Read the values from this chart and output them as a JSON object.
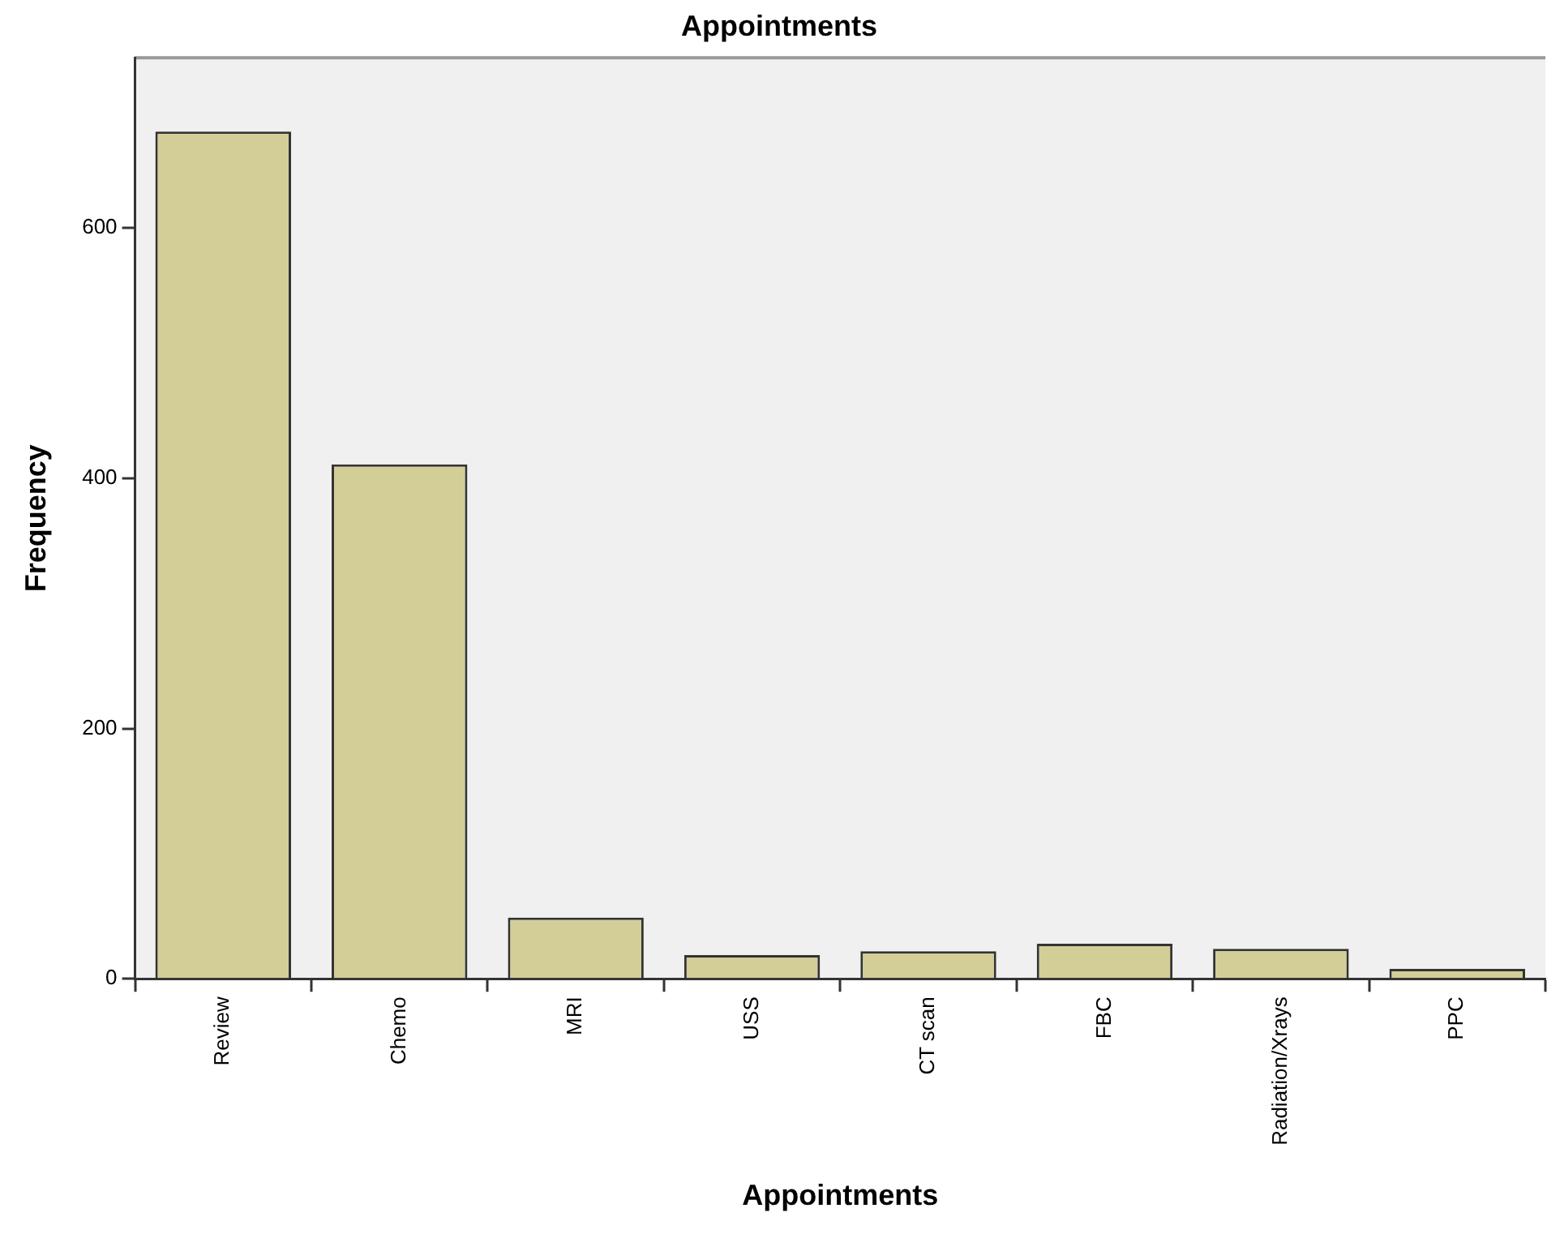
{
  "chart_data": {
    "type": "bar",
    "title": "Appointments",
    "xlabel": "Appointments",
    "ylabel": "Frequency",
    "categories": [
      "Review",
      "Chemo",
      "MRI",
      "USS",
      "CT scan",
      "FBC",
      "Radiation/Xrays",
      "PPC"
    ],
    "values": [
      677,
      411,
      49,
      19,
      22,
      28,
      24,
      8
    ],
    "color": "#d3ce97",
    "ylim": [
      0,
      736
    ],
    "yticks": [
      0,
      200,
      400,
      600
    ],
    "grid": false,
    "legend": false
  }
}
